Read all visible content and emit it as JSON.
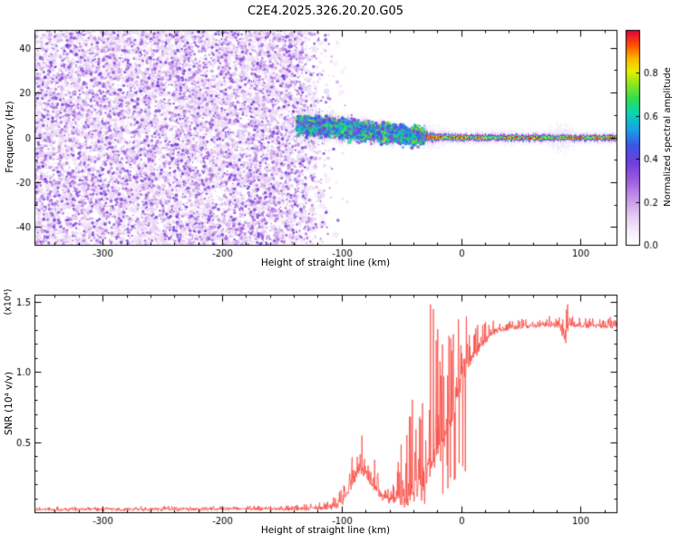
{
  "figure": {
    "title": "C2E4.2025.326.20.20.G05",
    "background": "#ffffff",
    "text_color": "#000000"
  },
  "chart_data": [
    {
      "id": "spectrogram",
      "type": "heatmap",
      "xlabel": "Height of straight line (km)",
      "ylabel": "Frequency (Hz)",
      "xlim": [
        -357,
        130
      ],
      "ylim": [
        -48,
        48
      ],
      "xticks": [
        -300,
        -200,
        -100,
        0,
        100
      ],
      "xtick_labels": [
        "-300",
        "-200",
        "-100",
        "0",
        "100"
      ],
      "yticks": [
        -40,
        -20,
        0,
        20,
        40
      ],
      "ytick_labels": [
        "-40",
        "-20",
        "0",
        "20",
        "40"
      ],
      "grid": false,
      "colorbar": {
        "label": "Normalized spectral amplitude",
        "range": [
          0,
          1
        ],
        "tick_values": [
          0,
          0.2,
          0.4,
          0.6,
          0.8
        ],
        "tick_labels": [
          "0.0",
          "0.2",
          "0.4",
          "0.6",
          "0.8"
        ],
        "stops": [
          [
            0.0,
            "#ffffff"
          ],
          [
            0.06,
            "#f6eefb"
          ],
          [
            0.14,
            "#e2c6f2"
          ],
          [
            0.22,
            "#c291e8"
          ],
          [
            0.3,
            "#9c5ce0"
          ],
          [
            0.38,
            "#6f3fdc"
          ],
          [
            0.46,
            "#3c55e6"
          ],
          [
            0.54,
            "#15a5e8"
          ],
          [
            0.61,
            "#0cd3b4"
          ],
          [
            0.68,
            "#2ede52"
          ],
          [
            0.75,
            "#8fe61e"
          ],
          [
            0.81,
            "#e8ee00"
          ],
          [
            0.87,
            "#ffb400"
          ],
          [
            0.93,
            "#ff5000"
          ],
          [
            1.0,
            "#e1003f"
          ]
        ]
      },
      "noise_field": {
        "x_range": [
          -357,
          -95
        ],
        "fade_start": -133,
        "fade_scale_km": 11,
        "value_range": [
          0.04,
          0.38
        ],
        "haze_count": 3000,
        "dot_count": 9000
      },
      "signal_track": {
        "center_freq_keypoints": [
          [
            -140,
            5.6
          ],
          [
            -120,
            5.0
          ],
          [
            -100,
            3.9
          ],
          [
            -80,
            2.7
          ],
          [
            -60,
            1.7
          ],
          [
            -40,
            0.8
          ],
          [
            -20,
            0.3
          ],
          [
            0,
            0.05
          ],
          [
            130,
            0.0
          ]
        ],
        "amplitude_keypoints": [
          [
            -140,
            0.5
          ],
          [
            -120,
            0.62
          ],
          [
            -100,
            0.66
          ],
          [
            -80,
            0.62
          ],
          [
            -60,
            0.66
          ],
          [
            -40,
            0.72
          ],
          [
            -28,
            0.8
          ],
          [
            0,
            0.78
          ],
          [
            60,
            0.76
          ],
          [
            130,
            0.78
          ]
        ],
        "core_width_hz_keypoints": [
          [
            -140,
            3.4
          ],
          [
            -120,
            3.2
          ],
          [
            -100,
            2.9
          ],
          [
            -60,
            2.3
          ],
          [
            -40,
            1.7
          ],
          [
            -20,
            1.2
          ],
          [
            0,
            1.0
          ],
          [
            130,
            0.9
          ]
        ],
        "halo_width_hz_keypoints": [
          [
            -140,
            9
          ],
          [
            -60,
            7
          ],
          [
            -40,
            6
          ],
          [
            -25,
            7
          ],
          [
            -10,
            4.5
          ],
          [
            70,
            4
          ],
          [
            86,
            9
          ],
          [
            96,
            4
          ],
          [
            130,
            4
          ]
        ],
        "hot_segments": [
          [
            -52,
            -48
          ],
          [
            -31,
            -15
          ],
          [
            -4,
            7
          ],
          [
            40,
            47
          ],
          [
            55,
            66
          ],
          [
            88,
            101
          ],
          [
            112,
            117
          ],
          [
            123,
            130
          ]
        ],
        "scatter_region": [
          -138,
          -30
        ],
        "scatter_count": 2400
      }
    },
    {
      "id": "snr",
      "type": "line",
      "xlabel": "Height of straight line (km)",
      "ylabel": "SNR (10⁴ v/v)",
      "scale_note": "(x10⁴)",
      "line_color": "#f8443c",
      "xlim": [
        -357,
        130
      ],
      "ylim": [
        0,
        1.55
      ],
      "xticks": [
        -300,
        -200,
        -100,
        0,
        100
      ],
      "xtick_labels": [
        "-300",
        "-200",
        "-100",
        "0",
        "100"
      ],
      "yticks": [
        0.5,
        1.0,
        1.5
      ],
      "ytick_labels": [
        "0.5",
        "1.0",
        "1.5"
      ],
      "envelope_keypoints": [
        [
          -357,
          0.018,
          0.012
        ],
        [
          -250,
          0.02,
          0.012
        ],
        [
          -160,
          0.022,
          0.015
        ],
        [
          -120,
          0.025,
          0.03
        ],
        [
          -105,
          0.04,
          0.07
        ],
        [
          -97,
          0.09,
          0.18
        ],
        [
          -90,
          0.22,
          0.28
        ],
        [
          -84,
          0.3,
          0.25
        ],
        [
          -78,
          0.26,
          0.22
        ],
        [
          -72,
          0.16,
          0.18
        ],
        [
          -66,
          0.1,
          0.12
        ],
        [
          -60,
          0.08,
          0.12
        ],
        [
          -54,
          0.09,
          0.2
        ],
        [
          -48,
          0.11,
          0.45
        ],
        [
          -42,
          0.13,
          0.6
        ],
        [
          -36,
          0.17,
          0.8
        ],
        [
          -30,
          0.22,
          1.0
        ],
        [
          -24,
          0.3,
          1.1
        ],
        [
          -18,
          0.42,
          0.95
        ],
        [
          -12,
          0.58,
          0.75
        ],
        [
          -6,
          0.75,
          0.55
        ],
        [
          0,
          0.92,
          0.4
        ],
        [
          8,
          1.08,
          0.25
        ],
        [
          16,
          1.18,
          0.15
        ],
        [
          24,
          1.26,
          0.09
        ],
        [
          32,
          1.3,
          0.06
        ],
        [
          60,
          1.33,
          0.05
        ],
        [
          82,
          1.33,
          0.05
        ],
        [
          87,
          1.22,
          0.3
        ],
        [
          91,
          1.35,
          0.12
        ],
        [
          96,
          1.33,
          0.05
        ],
        [
          130,
          1.32,
          0.05
        ]
      ]
    }
  ]
}
